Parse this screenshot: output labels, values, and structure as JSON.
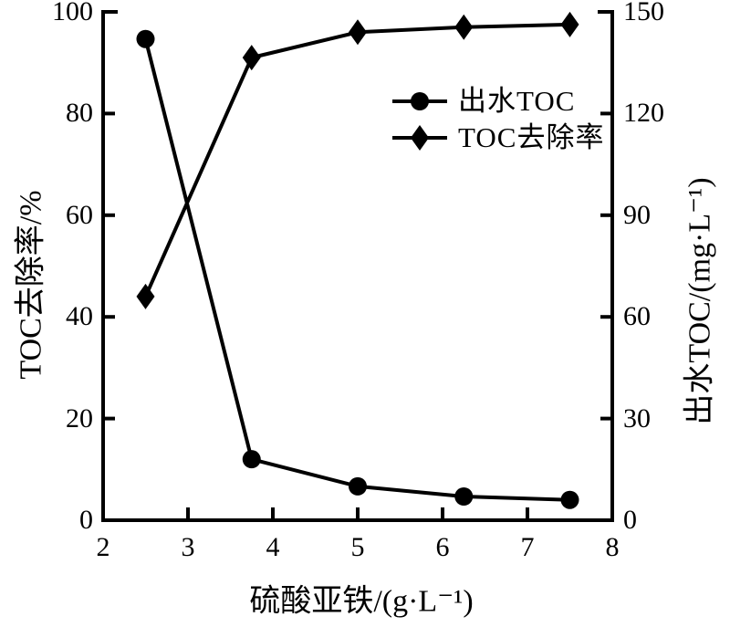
{
  "chart_data": {
    "type": "line",
    "title": "",
    "xlabel": "硫酸亚铁/(g·L⁻¹)",
    "ylabel_left": "TOC去除率/%",
    "ylabel_right": "出水TOC/(mg·L⁻¹)",
    "xlim": [
      2,
      8
    ],
    "x_ticks": [
      2,
      3,
      4,
      5,
      6,
      7,
      8
    ],
    "ylim_left": [
      0,
      100
    ],
    "y_ticks_left": [
      0,
      20,
      40,
      60,
      80,
      100
    ],
    "ylim_right": [
      0,
      150
    ],
    "y_ticks_right": [
      0,
      30,
      60,
      90,
      120,
      150
    ],
    "grid": false,
    "legend_position": "upper-center-right",
    "x": [
      2.5,
      3.75,
      5.0,
      6.25,
      7.5
    ],
    "series": [
      {
        "name": "出水TOC",
        "axis": "right",
        "marker": "circle",
        "values": [
          142,
          18,
          10,
          7,
          6
        ]
      },
      {
        "name": "TOC去除率",
        "axis": "left",
        "marker": "diamond",
        "values": [
          44,
          91,
          96,
          97,
          97.5
        ]
      }
    ],
    "colors": {
      "line": "#000000",
      "marker": "#000000",
      "background": "#ffffff",
      "text": "#000000"
    }
  }
}
